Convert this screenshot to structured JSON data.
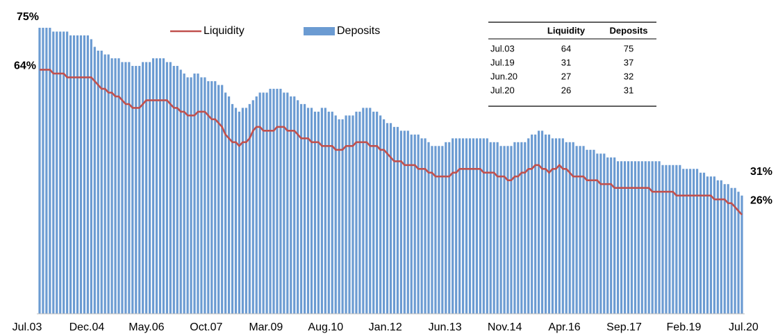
{
  "chart_data": {
    "type": "bar_line",
    "categories": [
      "Jul.03",
      null,
      null,
      null,
      null,
      null,
      null,
      null,
      null,
      null,
      null,
      null,
      null,
      null,
      null,
      null,
      null,
      "Dec.04",
      null,
      null,
      null,
      null,
      null,
      null,
      null,
      null,
      null,
      null,
      null,
      null,
      null,
      null,
      null,
      null,
      "May.06",
      null,
      null,
      null,
      null,
      null,
      null,
      null,
      null,
      null,
      null,
      null,
      null,
      null,
      null,
      null,
      null,
      "Oct.07",
      null,
      null,
      null,
      null,
      null,
      null,
      null,
      null,
      null,
      null,
      null,
      null,
      null,
      null,
      null,
      null,
      "Mar.09",
      null,
      null,
      null,
      null,
      null,
      null,
      null,
      null,
      null,
      null,
      null,
      null,
      null,
      null,
      null,
      null,
      "Aug.10",
      null,
      null,
      null,
      null,
      null,
      null,
      null,
      null,
      null,
      null,
      null,
      null,
      null,
      null,
      null,
      null,
      "Jan.12",
      null,
      null,
      null,
      null,
      null,
      null,
      null,
      null,
      null,
      null,
      null,
      null,
      null,
      null,
      null,
      null,
      "Jun.13",
      null,
      null,
      null,
      null,
      null,
      null,
      null,
      null,
      null,
      null,
      null,
      null,
      null,
      null,
      null,
      null,
      "Nov.14",
      null,
      null,
      null,
      null,
      null,
      null,
      null,
      null,
      null,
      null,
      null,
      null,
      null,
      null,
      null,
      null,
      "Apr.16",
      null,
      null,
      null,
      null,
      null,
      null,
      null,
      null,
      null,
      null,
      null,
      null,
      null,
      null,
      null,
      null,
      "Sep.17",
      null,
      null,
      null,
      null,
      null,
      null,
      null,
      null,
      null,
      null,
      null,
      null,
      null,
      null,
      null,
      null,
      "Feb.19",
      null,
      null,
      null,
      null,
      null,
      null,
      null,
      null,
      null,
      null,
      null,
      null,
      null,
      null,
      null,
      null,
      "Jul.20"
    ],
    "series": [
      {
        "name": "Liquidity",
        "kind": "line",
        "color": "#c0504d",
        "values": [
          64,
          64,
          64,
          64,
          63,
          63,
          63,
          63,
          62,
          62,
          62,
          62,
          62,
          62,
          62,
          62,
          61,
          60,
          59,
          59,
          58,
          58,
          57,
          57,
          56,
          55,
          55,
          54,
          54,
          54,
          55,
          56,
          56,
          56,
          56,
          56,
          56,
          56,
          55,
          54,
          54,
          53,
          53,
          52,
          52,
          52,
          53,
          53,
          53,
          52,
          51,
          51,
          50,
          49,
          47,
          46,
          45,
          45,
          44,
          45,
          45,
          46,
          48,
          49,
          49,
          48,
          48,
          48,
          48,
          49,
          49,
          49,
          48,
          48,
          48,
          47,
          46,
          46,
          46,
          45,
          45,
          45,
          44,
          44,
          44,
          44,
          43,
          43,
          43,
          44,
          44,
          44,
          45,
          45,
          45,
          45,
          44,
          44,
          44,
          43,
          43,
          42,
          41,
          40,
          40,
          40,
          39,
          39,
          39,
          39,
          38,
          38,
          38,
          37,
          37,
          36,
          36,
          36,
          36,
          36,
          37,
          37,
          38,
          38,
          38,
          38,
          38,
          38,
          38,
          37,
          37,
          37,
          37,
          36,
          36,
          36,
          35,
          35,
          36,
          36,
          37,
          37,
          38,
          38,
          39,
          39,
          38,
          38,
          37,
          38,
          38,
          39,
          38,
          38,
          37,
          36,
          36,
          36,
          36,
          35,
          35,
          35,
          35,
          34,
          34,
          34,
          34,
          33,
          33,
          33,
          33,
          33,
          33,
          33,
          33,
          33,
          33,
          33,
          32,
          32,
          32,
          32,
          32,
          32,
          32,
          31,
          31,
          31,
          31,
          31,
          31,
          31,
          31,
          31,
          31,
          31,
          30,
          30,
          30,
          30,
          29,
          29,
          28,
          27,
          26
        ],
        "value_labels": {
          "0": "64%",
          "204": "26%"
        }
      },
      {
        "name": "Deposits",
        "kind": "bar",
        "color": "#6b9bd2",
        "values": [
          75,
          75,
          75,
          75,
          74,
          74,
          74,
          74,
          74,
          73,
          73,
          73,
          73,
          73,
          73,
          72,
          70,
          69,
          69,
          68,
          68,
          67,
          67,
          67,
          66,
          66,
          66,
          65,
          65,
          65,
          66,
          66,
          66,
          67,
          67,
          67,
          67,
          66,
          66,
          65,
          65,
          64,
          63,
          62,
          62,
          63,
          63,
          62,
          62,
          61,
          61,
          61,
          60,
          60,
          58,
          57,
          55,
          54,
          53,
          54,
          54,
          55,
          56,
          57,
          58,
          58,
          58,
          59,
          59,
          59,
          59,
          58,
          58,
          57,
          57,
          56,
          55,
          55,
          54,
          54,
          53,
          53,
          54,
          54,
          53,
          53,
          52,
          51,
          51,
          52,
          52,
          52,
          53,
          53,
          54,
          54,
          54,
          53,
          53,
          52,
          51,
          50,
          50,
          49,
          49,
          48,
          48,
          48,
          47,
          47,
          47,
          46,
          46,
          45,
          44,
          44,
          44,
          44,
          45,
          45,
          46,
          46,
          46,
          46,
          46,
          46,
          46,
          46,
          46,
          46,
          46,
          45,
          45,
          45,
          44,
          44,
          44,
          44,
          45,
          45,
          45,
          45,
          46,
          47,
          47,
          48,
          48,
          47,
          47,
          46,
          46,
          46,
          46,
          45,
          45,
          45,
          44,
          44,
          44,
          43,
          43,
          43,
          42,
          42,
          42,
          41,
          41,
          41,
          40,
          40,
          40,
          40,
          40,
          40,
          40,
          40,
          40,
          40,
          40,
          40,
          40,
          39,
          39,
          39,
          39,
          39,
          39,
          38,
          38,
          38,
          38,
          38,
          37,
          37,
          36,
          36,
          36,
          35,
          35,
          34,
          34,
          33,
          33,
          32,
          31
        ],
        "value_labels": {
          "0": "75%",
          "204": "31%"
        }
      }
    ],
    "ylim": [
      0,
      75
    ]
  },
  "table": {
    "columns": [
      "Liquidity",
      "Deposits"
    ],
    "rows": [
      {
        "label": "Jul.03",
        "values": [
          64,
          75
        ]
      },
      {
        "label": "Jul.19",
        "values": [
          31,
          37
        ]
      },
      {
        "label": "Jun.20",
        "values": [
          27,
          32
        ]
      },
      {
        "label": "Jul.20",
        "values": [
          26,
          31
        ]
      }
    ]
  }
}
